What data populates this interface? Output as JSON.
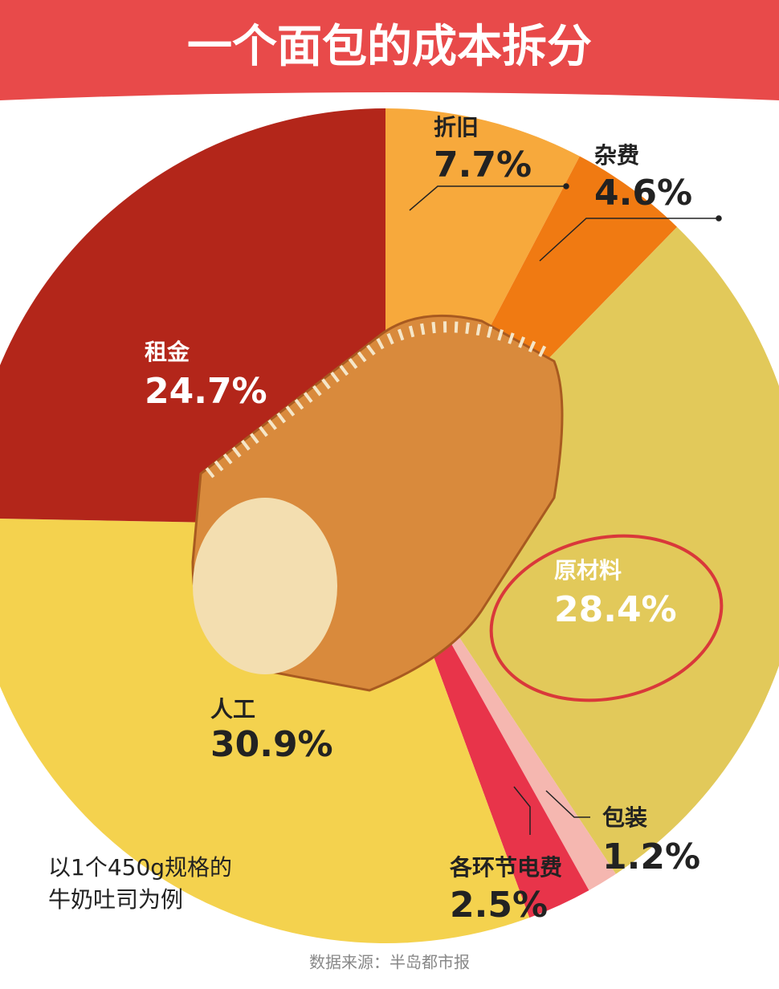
{
  "chart_data": {
    "type": "pie",
    "title": "一个面包的成本拆分",
    "categories": [
      "折旧",
      "杂费",
      "原材料",
      "包装",
      "各环节电费",
      "人工",
      "租金"
    ],
    "values": [
      7.7,
      4.6,
      28.4,
      1.2,
      2.5,
      30.9,
      24.7
    ],
    "value_labels": [
      "7.7%",
      "4.6%",
      "28.4%",
      "1.2%",
      "2.5%",
      "30.9%",
      "24.7%"
    ],
    "colors": [
      "#f7a93c",
      "#f07a12",
      "#e2c95a",
      "#f5b7b0",
      "#e8344a",
      "#f4d24e",
      "#b3261a"
    ],
    "note": [
      "以1个450g规格的",
      "牛奶吐司为例"
    ],
    "source": "数据来源：半岛都市报"
  }
}
